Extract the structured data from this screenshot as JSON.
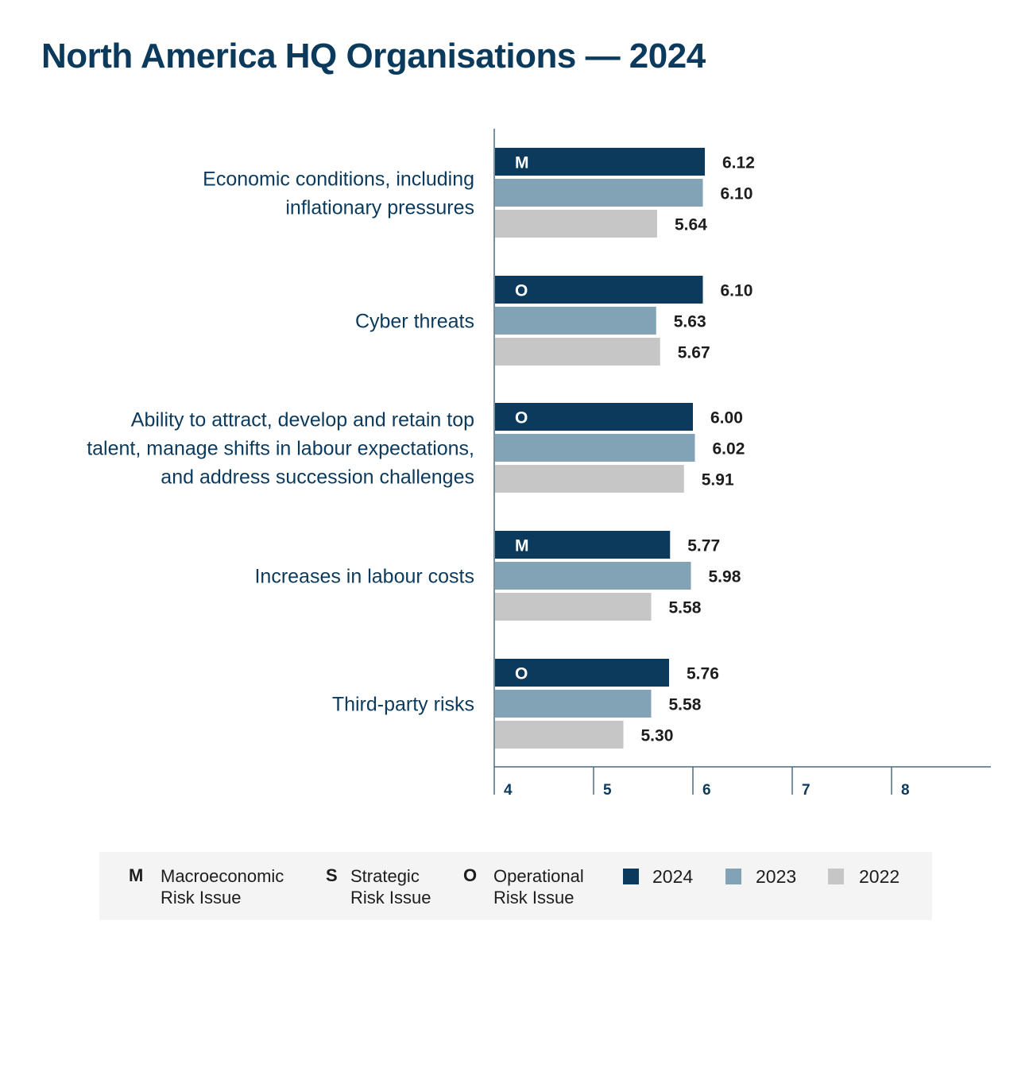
{
  "title": "North America HQ Organisations — 2024",
  "colors": {
    "2024": "#0b3a5d",
    "2023": "#82a3b5",
    "2022": "#c6c6c6",
    "category_label": "#0b3a5d",
    "axis": "#4d6b80"
  },
  "chart_data": {
    "type": "bar",
    "orientation": "horizontal",
    "categories": [
      [
        "Economic conditions, including",
        "inflationary pressures"
      ],
      [
        "Cyber threats"
      ],
      [
        "Ability to attract, develop and retain top",
        "talent, manage shifts in labour expectations,",
        "and address succession challenges"
      ],
      [
        "Increases in labour costs"
      ],
      [
        "Third-party risks"
      ]
    ],
    "risk_codes": [
      "M",
      "O",
      "O",
      "M",
      "O"
    ],
    "series": [
      {
        "name": "2024",
        "values": [
          6.12,
          6.1,
          6.0,
          5.77,
          5.76
        ],
        "labels": [
          "6.12",
          "6.10",
          "6.00",
          "5.77",
          "5.76"
        ]
      },
      {
        "name": "2023",
        "values": [
          6.1,
          5.63,
          6.02,
          5.98,
          5.58
        ],
        "labels": [
          "6.10",
          "5.63",
          "6.02",
          "5.98",
          "5.58"
        ]
      },
      {
        "name": "2022",
        "values": [
          5.64,
          5.67,
          5.91,
          5.58,
          5.3
        ],
        "labels": [
          "5.64",
          "5.67",
          "5.91",
          "5.58",
          "5.30"
        ]
      }
    ],
    "xlim": [
      4,
      9
    ],
    "xticks": [
      "4",
      "5",
      "6",
      "7",
      "8"
    ]
  },
  "legend": {
    "risk_types": [
      {
        "code": "M",
        "line1": "Macroeconomic",
        "line2": "Risk Issue"
      },
      {
        "code": "S",
        "line1": "Strategic",
        "line2": "Risk Issue"
      },
      {
        "code": "O",
        "line1": "Operational",
        "line2": "Risk Issue"
      }
    ],
    "years": [
      "2024",
      "2023",
      "2022"
    ]
  }
}
